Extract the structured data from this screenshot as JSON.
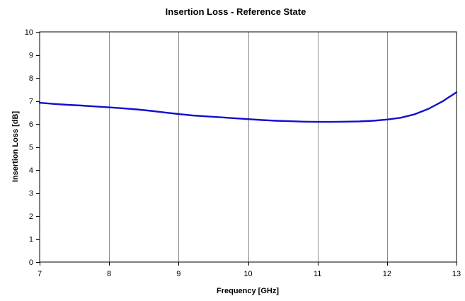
{
  "chart_data": {
    "type": "line",
    "title": "Insertion Loss - Reference State",
    "xlabel": "Frequency [GHz]",
    "ylabel": "Insertion Loss [dB]",
    "xlim": [
      7,
      13
    ],
    "ylim": [
      0,
      10
    ],
    "x_ticks": [
      "7",
      "8",
      "9",
      "10",
      "11",
      "12",
      "13"
    ],
    "y_ticks": [
      "0",
      "1",
      "2",
      "3",
      "4",
      "5",
      "6",
      "7",
      "8",
      "9",
      "10"
    ],
    "grid": "vertical",
    "legend": "none",
    "series": [
      {
        "color": "#1010d0",
        "x": [
          7.0,
          7.2,
          7.4,
          7.6,
          7.8,
          8.0,
          8.2,
          8.4,
          8.6,
          8.8,
          9.0,
          9.2,
          9.4,
          9.6,
          9.8,
          10.0,
          10.2,
          10.4,
          10.6,
          10.8,
          11.0,
          11.2,
          11.4,
          11.6,
          11.8,
          12.0,
          12.2,
          12.4,
          12.6,
          12.8,
          13.0
        ],
        "y": [
          6.92,
          6.87,
          6.83,
          6.8,
          6.76,
          6.72,
          6.68,
          6.63,
          6.57,
          6.5,
          6.43,
          6.37,
          6.33,
          6.29,
          6.25,
          6.21,
          6.17,
          6.14,
          6.12,
          6.1,
          6.09,
          6.09,
          6.1,
          6.11,
          6.14,
          6.19,
          6.27,
          6.42,
          6.66,
          6.98,
          7.38
        ]
      }
    ]
  }
}
